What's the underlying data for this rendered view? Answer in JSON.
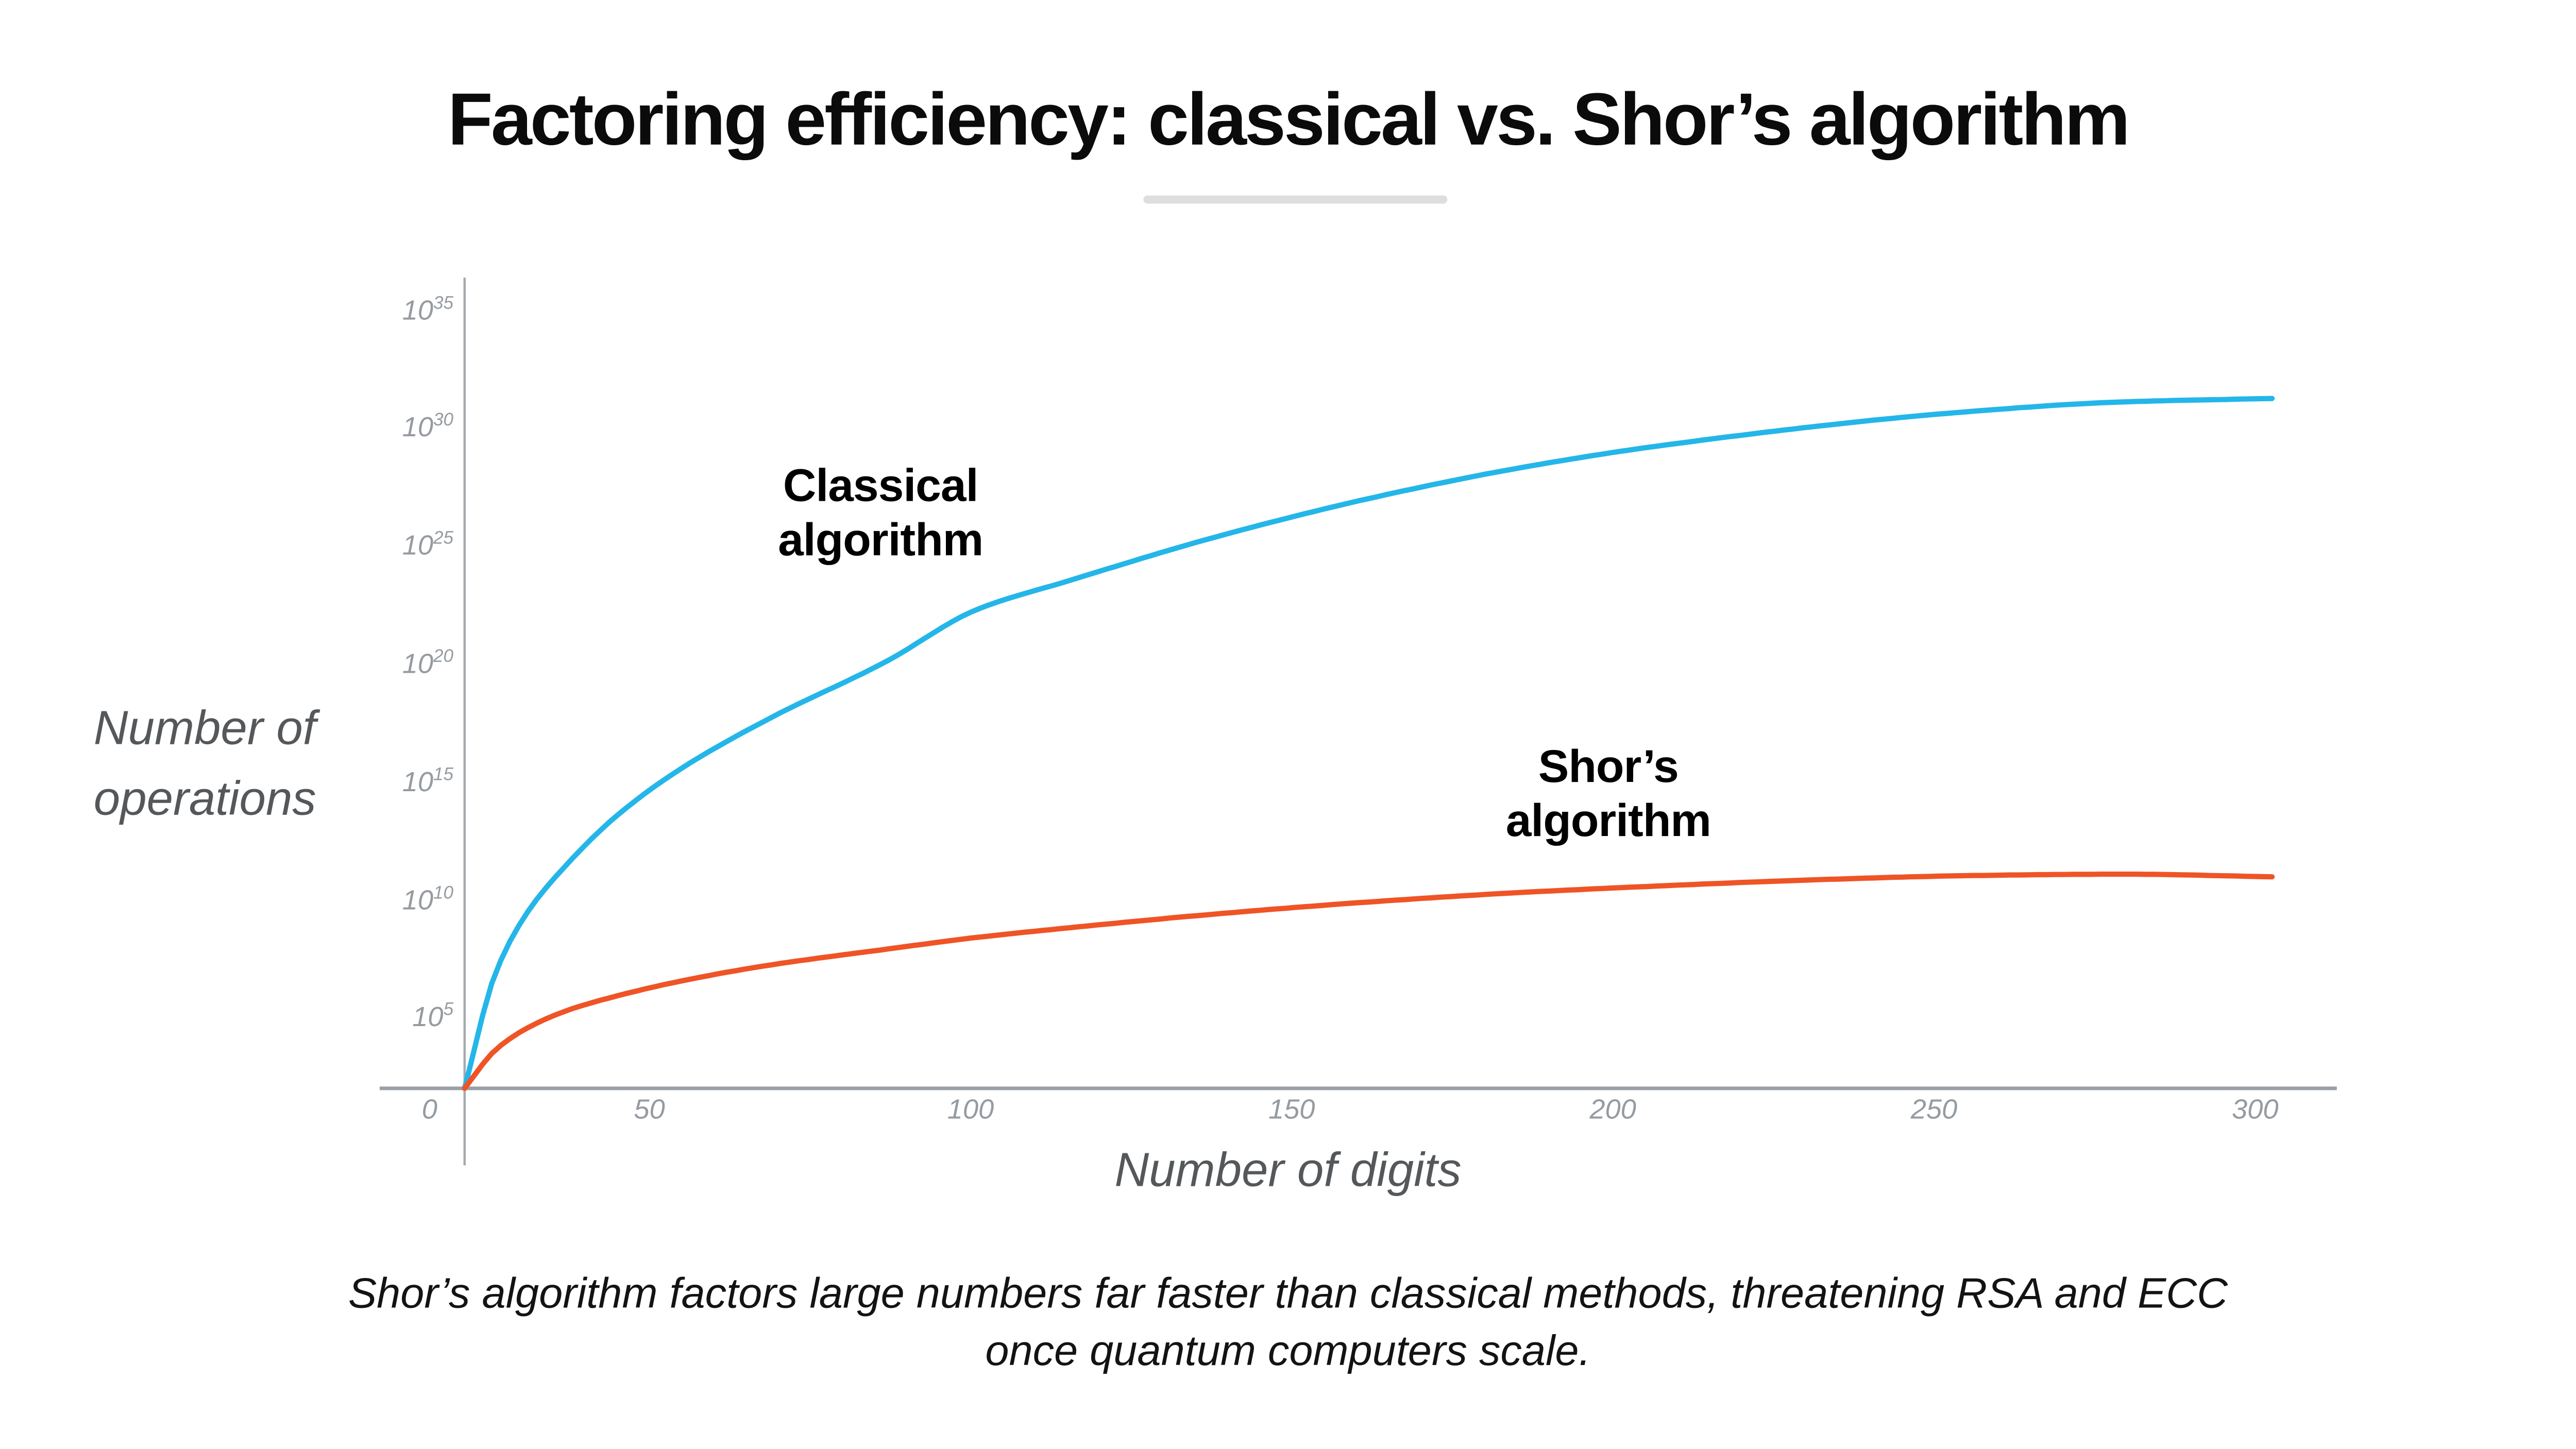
{
  "header": {
    "title": "Factoring efficiency: classical vs. Shor’s algorithm"
  },
  "chart_data": {
    "type": "line",
    "title": "Factoring efficiency: classical vs. Shor’s algorithm",
    "xlabel": "Number of digits",
    "ylabel": "Number of operations",
    "ylabel_display": "Number of\noperations",
    "y_scale": "log",
    "x_ticks": [
      0,
      50,
      100,
      150,
      200,
      250,
      300
    ],
    "y_ticks": [
      {
        "base": "10",
        "exp": 35
      },
      {
        "base": "10",
        "exp": 30
      },
      {
        "base": "10",
        "exp": 25
      },
      {
        "base": "10",
        "exp": 20
      },
      {
        "base": "10",
        "exp": 15
      },
      {
        "base": "10",
        "exp": 10
      },
      {
        "base": "10",
        "exp": 5
      }
    ],
    "xlim": [
      0,
      300
    ],
    "ylim_log10": [
      1.7,
      35
    ],
    "grid": false,
    "legend_position": "inline-annotations",
    "series": [
      {
        "name": "Classical algorithm",
        "label": "Classical\nalgorithm",
        "color": "#24b6e9",
        "points_format": [
          "digits",
          "log10_operations"
        ],
        "points": [
          [
            0,
            1.7
          ],
          [
            5,
            6.5
          ],
          [
            10,
            9.0
          ],
          [
            17,
            11.2
          ],
          [
            25,
            13.2
          ],
          [
            35,
            15.1
          ],
          [
            50,
            17.3
          ],
          [
            70,
            19.8
          ],
          [
            85,
            22.0
          ],
          [
            100,
            23.2
          ],
          [
            125,
            25.1
          ],
          [
            150,
            26.7
          ],
          [
            175,
            28.0
          ],
          [
            200,
            29.0
          ],
          [
            250,
            30.4
          ],
          [
            275,
            30.8
          ],
          [
            300,
            30.95
          ]
        ]
      },
      {
        "name": "Shor’s algorithm",
        "label": "Shor’s\nalgorithm",
        "color": "#ef5426",
        "points_format": [
          "digits",
          "log10_operations"
        ],
        "points": [
          [
            0,
            1.7
          ],
          [
            5,
            3.3
          ],
          [
            10,
            4.2
          ],
          [
            17,
            5.0
          ],
          [
            25,
            5.6
          ],
          [
            35,
            6.2
          ],
          [
            50,
            6.9
          ],
          [
            70,
            7.6
          ],
          [
            85,
            8.1
          ],
          [
            100,
            8.5
          ],
          [
            125,
            9.1
          ],
          [
            150,
            9.6
          ],
          [
            175,
            10.0
          ],
          [
            200,
            10.3
          ],
          [
            225,
            10.55
          ],
          [
            250,
            10.72
          ],
          [
            275,
            10.78
          ],
          [
            300,
            10.67
          ]
        ]
      }
    ]
  },
  "caption": {
    "line1": "Shor’s algorithm factors large numbers far faster than classical methods, threatening RSA and ECC",
    "line2": "once quantum computers scale."
  },
  "palette": {
    "classical_blue": "#24b6e9",
    "shor_orange": "#ef5426",
    "axis_gray": "#9aa0a5",
    "tick_text_gray": "#959ba1",
    "axis_title_gray": "#55585b",
    "divider_gray": "#dedede",
    "title_black": "#0b0b0b"
  }
}
